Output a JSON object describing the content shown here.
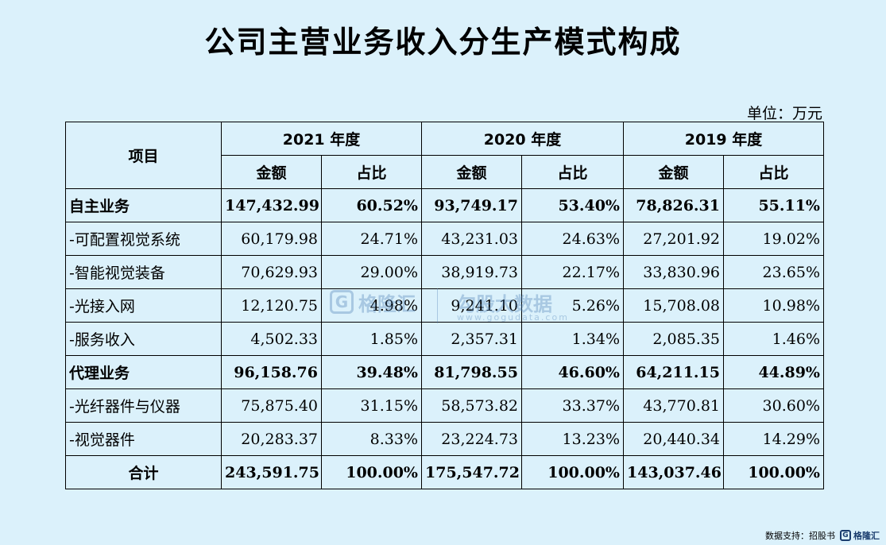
{
  "title": "公司主营业务收入分生产模式构成",
  "unit": "单位：万元",
  "header": {
    "item": "项目",
    "years": [
      "2021 年度",
      "2020 年度",
      "2019 年度"
    ],
    "amount": "金额",
    "ratio": "占比"
  },
  "rows": [
    {
      "label": "自主业务",
      "bold": true,
      "values": [
        "147,432.99",
        "60.52%",
        "93,749.17",
        "53.40%",
        "78,826.31",
        "55.11%"
      ]
    },
    {
      "label": "-可配置视觉系统",
      "bold": false,
      "values": [
        "60,179.98",
        "24.71%",
        "43,231.03",
        "24.63%",
        "27,201.92",
        "19.02%"
      ]
    },
    {
      "label": "-智能视觉装备",
      "bold": false,
      "values": [
        "70,629.93",
        "29.00%",
        "38,919.73",
        "22.17%",
        "33,830.96",
        "23.65%"
      ]
    },
    {
      "label": "-光接入网",
      "bold": false,
      "values": [
        "12,120.75",
        "4.98%",
        "9,241.10",
        "5.26%",
        "15,708.08",
        "10.98%"
      ]
    },
    {
      "label": "-服务收入",
      "bold": false,
      "values": [
        "4,502.33",
        "1.85%",
        "2,357.31",
        "1.34%",
        "2,085.35",
        "1.46%"
      ]
    },
    {
      "label": "代理业务",
      "bold": true,
      "values": [
        "96,158.76",
        "39.48%",
        "81,798.55",
        "46.60%",
        "64,211.15",
        "44.89%"
      ]
    },
    {
      "label": "-光纤器件与仪器",
      "bold": false,
      "values": [
        "75,875.40",
        "31.15%",
        "58,573.82",
        "33.37%",
        "43,770.81",
        "30.60%"
      ]
    },
    {
      "label": "-视觉器件",
      "bold": false,
      "values": [
        "20,283.37",
        "8.33%",
        "23,224.73",
        "13.23%",
        "20,440.34",
        "14.29%"
      ]
    },
    {
      "label": "合计",
      "bold": true,
      "values": [
        "243,591.75",
        "100.00%",
        "175,547.72",
        "100.00%",
        "143,037.46",
        "100.00%"
      ]
    }
  ],
  "watermark": {
    "logo_char": "G",
    "brand1": "格隆汇",
    "brand2": "勾股大数据",
    "url2": "www.gogudata.com"
  },
  "footer": {
    "source": "数据支持：招股书",
    "logo_char": "G",
    "logo_text": "格隆汇"
  }
}
